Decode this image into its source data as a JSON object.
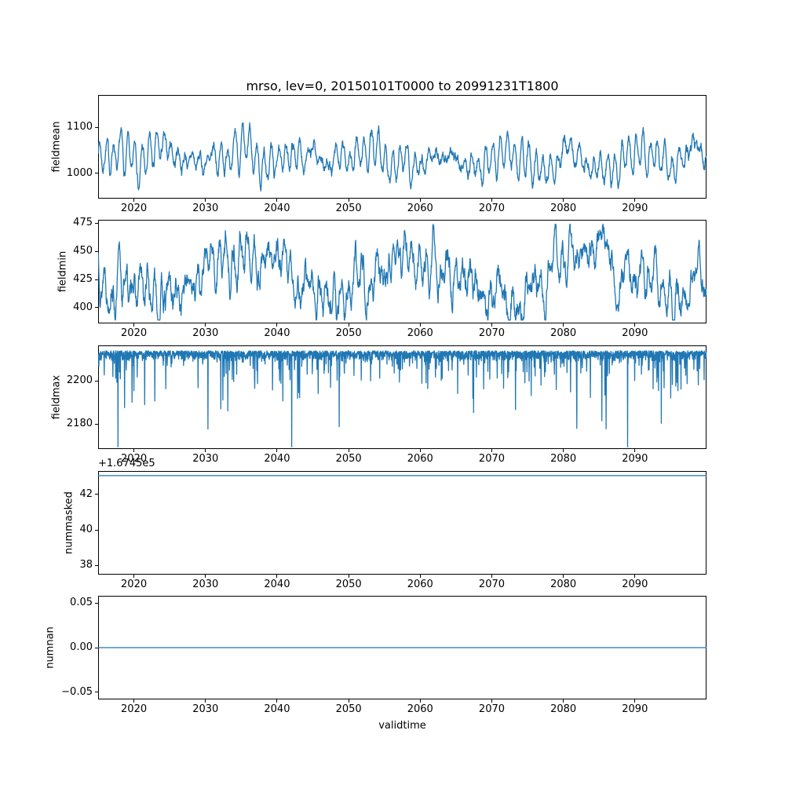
{
  "title": "mrso, lev=0, 20150101T0000 to 20991231T1800",
  "xlabel": "validtime",
  "line_color": "#1f77b4",
  "x_axis": {
    "xlim": [
      2015,
      2100
    ],
    "xticks": [
      2020,
      2030,
      2040,
      2050,
      2060,
      2070,
      2080,
      2090
    ]
  },
  "chart_data": [
    {
      "type": "line",
      "name": "fieldmean",
      "ylabel": "fieldmean",
      "ylim": [
        945,
        1170
      ],
      "ytick_vals": [
        1000,
        1100
      ],
      "ytick_labels": [
        "1000",
        "1100"
      ],
      "approx_value_range": [
        955,
        1160
      ],
      "series": {
        "kind": "noisy",
        "seed": 7,
        "points": 2200,
        "base": 1032,
        "annual_amp": 26,
        "amp_mod": 0.5,
        "amp_mod_period": 17.7,
        "annual_phase": 0.4,
        "slow_amp": 13,
        "slow_period": 9.3,
        "slow_phase": 1.2,
        "noise": 18,
        "clamp": [
          951,
          1163
        ]
      }
    },
    {
      "type": "line",
      "name": "fieldmin",
      "ylabel": "fieldmin",
      "ylim": [
        386,
        478
      ],
      "ytick_vals": [
        400,
        425,
        450,
        475
      ],
      "ytick_labels": [
        "400",
        "425",
        "450",
        "475"
      ],
      "approx_value_range": [
        390,
        472
      ],
      "series": {
        "kind": "noisy",
        "seed": 13,
        "points": 2200,
        "base": 429,
        "annual_amp": 11,
        "amp_mod": 0.4,
        "amp_mod_period": 15,
        "annual_phase": 2.1,
        "slow_amp": 19,
        "slow_period": 24,
        "slow_phase": 2.6,
        "noise": 15,
        "clamp": [
          389,
          474
        ]
      }
    },
    {
      "type": "line",
      "name": "fieldmax",
      "ylabel": "fieldmax",
      "ylim": [
        2168.5,
        2216.5
      ],
      "ytick_vals": [
        2180,
        2200
      ],
      "ytick_labels": [
        "2180",
        "2200"
      ],
      "approx_value_range": [
        2166,
        2215
      ],
      "series": {
        "kind": "spiky",
        "seed": 29,
        "points": 2600,
        "base": 2214,
        "jitter": 5,
        "spike_prob": 0.1,
        "spike_min": 2,
        "spike_scale": 7.5,
        "clamp": [
          2169.5,
          2215.5
        ]
      }
    },
    {
      "type": "line",
      "name": "nummasked",
      "ylabel": "nummasked",
      "ylim": [
        37.47,
        43.33
      ],
      "ytick_vals": [
        38,
        40,
        42
      ],
      "ytick_labels": [
        "38",
        "40",
        "42"
      ],
      "offset_text": "+1.6745e5",
      "constant_value": 43.07,
      "series": {
        "kind": "constant",
        "value": 43.07
      }
    },
    {
      "type": "line",
      "name": "numnan",
      "ylabel": "numnan",
      "ylim": [
        -0.0579,
        0.0579
      ],
      "ytick_vals": [
        -0.05,
        0,
        0.05
      ],
      "ytick_labels": [
        "−0.05",
        "0.00",
        "0.05"
      ],
      "constant_value": 0,
      "series": {
        "kind": "constant",
        "value": 0
      }
    }
  ]
}
